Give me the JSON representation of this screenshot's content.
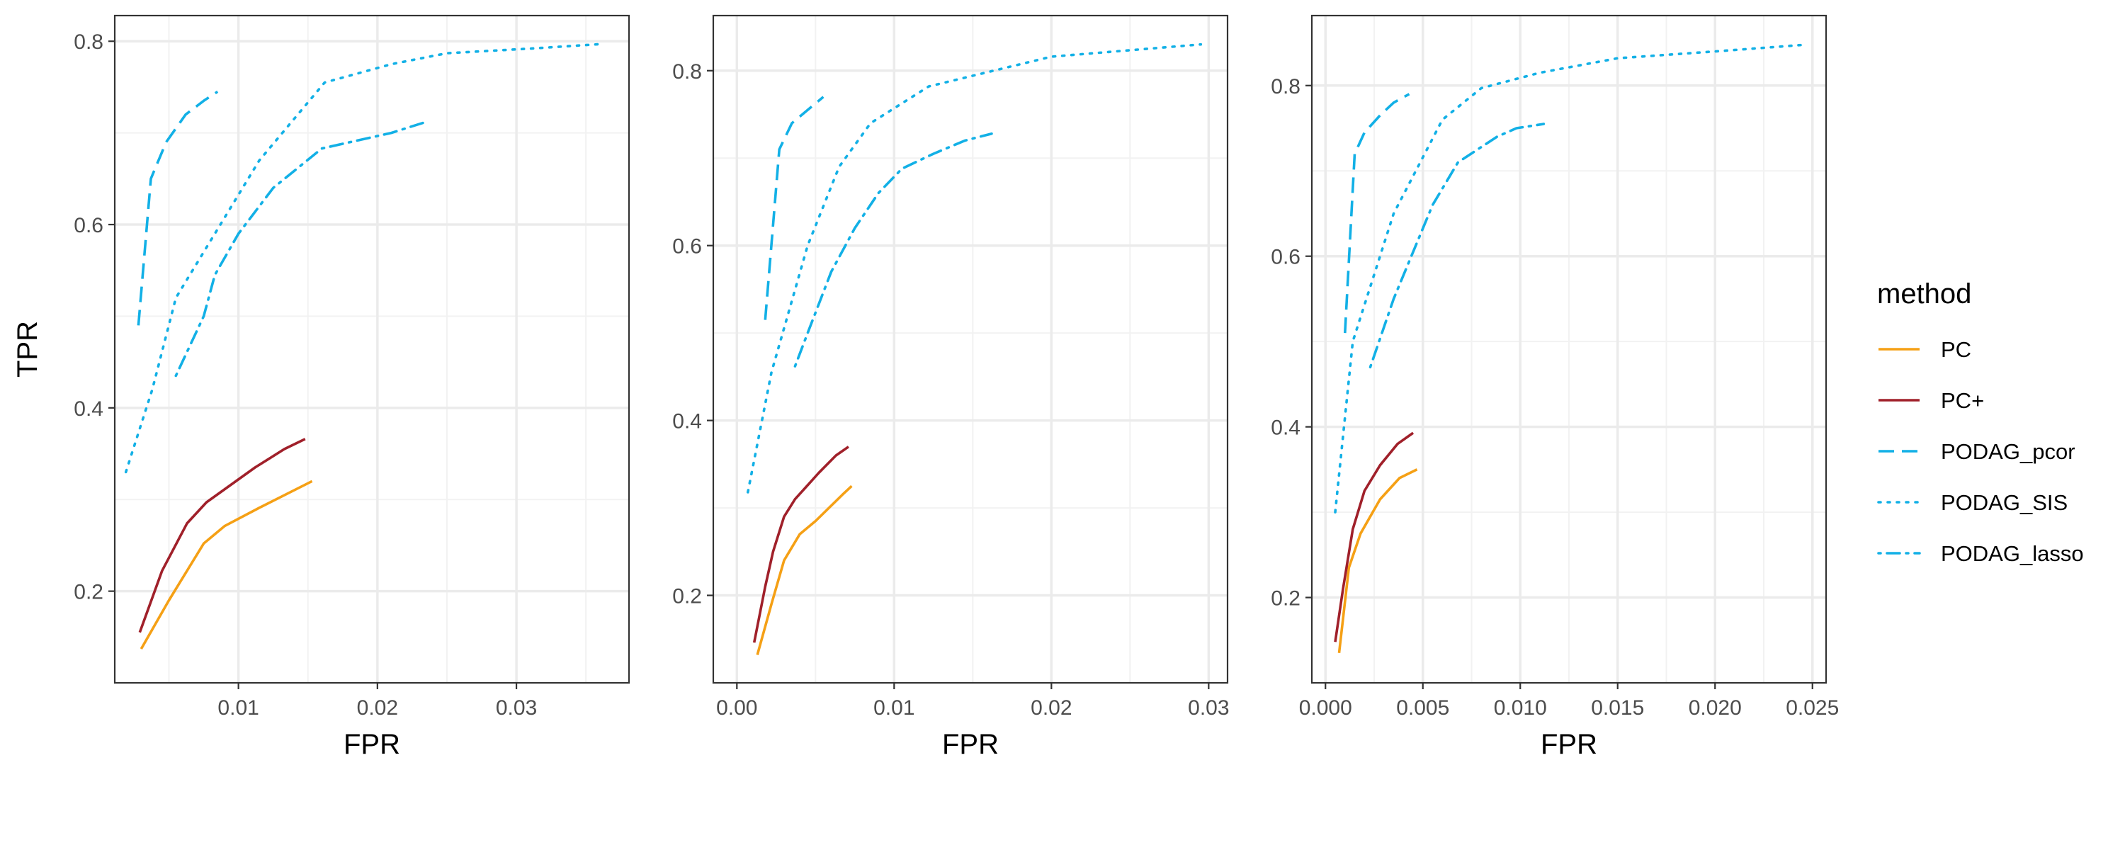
{
  "y_axis_label": "TPR",
  "colors": {
    "PC": "#F5A015",
    "PC+": "#A0202A",
    "PODAG": "#12B0E6"
  },
  "legend": {
    "title": "method",
    "items": [
      {
        "label": "PC",
        "color": "#F5A015",
        "dash": "solid"
      },
      {
        "label": "PC+",
        "color": "#A0202A",
        "dash": "solid"
      },
      {
        "label": "PODAG_pcor",
        "color": "#12B0E6",
        "dash": "dashed"
      },
      {
        "label": "PODAG_SIS",
        "color": "#12B0E6",
        "dash": "dotted"
      },
      {
        "label": "PODAG_lasso",
        "color": "#12B0E6",
        "dash": "dotdash"
      }
    ]
  },
  "chart_data": [
    {
      "type": "line",
      "xlabel": "FPR",
      "ylabel": "TPR",
      "xlim": [
        0.0011,
        0.0381
      ],
      "ylim": [
        0.1,
        0.828
      ],
      "xticks": [
        0.01,
        0.02,
        0.03
      ],
      "xtick_labels": [
        "0.01",
        "0.02",
        "0.03"
      ],
      "yticks": [
        0.2,
        0.4,
        0.6,
        0.8
      ],
      "ytick_labels": [
        "0.2",
        "0.4",
        "0.6",
        "0.8"
      ],
      "grid": true,
      "series": [
        {
          "name": "PC",
          "points": [
            [
              0.003,
              0.137
            ],
            [
              0.005,
              0.19
            ],
            [
              0.0075,
              0.252
            ],
            [
              0.009,
              0.271
            ],
            [
              0.0115,
              0.291
            ],
            [
              0.0153,
              0.32
            ]
          ]
        },
        {
          "name": "PC+",
          "points": [
            [
              0.0029,
              0.155
            ],
            [
              0.0045,
              0.222
            ],
            [
              0.0063,
              0.274
            ],
            [
              0.0077,
              0.297
            ],
            [
              0.0112,
              0.335
            ],
            [
              0.0133,
              0.355
            ],
            [
              0.0148,
              0.366
            ]
          ]
        },
        {
          "name": "PODAG_pcor",
          "points": [
            [
              0.0028,
              0.49
            ],
            [
              0.0037,
              0.65
            ],
            [
              0.0048,
              0.69
            ],
            [
              0.0062,
              0.72
            ],
            [
              0.0075,
              0.735
            ],
            [
              0.0085,
              0.745
            ]
          ]
        },
        {
          "name": "PODAG_SIS",
          "points": [
            [
              0.0019,
              0.33
            ],
            [
              0.0038,
              0.42
            ],
            [
              0.0055,
              0.52
            ],
            [
              0.0075,
              0.57
            ],
            [
              0.0115,
              0.67
            ],
            [
              0.0162,
              0.755
            ],
            [
              0.021,
              0.775
            ],
            [
              0.025,
              0.787
            ],
            [
              0.031,
              0.792
            ],
            [
              0.0362,
              0.797
            ]
          ]
        },
        {
          "name": "PODAG_lasso",
          "points": [
            [
              0.0055,
              0.435
            ],
            [
              0.0075,
              0.5
            ],
            [
              0.0083,
              0.545
            ],
            [
              0.01,
              0.59
            ],
            [
              0.0125,
              0.64
            ],
            [
              0.016,
              0.683
            ],
            [
              0.021,
              0.7
            ],
            [
              0.0235,
              0.712
            ]
          ]
        }
      ]
    },
    {
      "type": "line",
      "xlabel": "FPR",
      "ylabel": "",
      "xlim": [
        -0.0015,
        0.0312
      ],
      "ylim": [
        0.1,
        0.863
      ],
      "xticks": [
        0.0,
        0.01,
        0.02,
        0.03
      ],
      "xtick_labels": [
        "0.00",
        "0.01",
        "0.02",
        "0.03"
      ],
      "yticks": [
        0.2,
        0.4,
        0.6,
        0.8
      ],
      "ytick_labels": [
        "0.2",
        "0.4",
        "0.6",
        "0.8"
      ],
      "grid": true,
      "series": [
        {
          "name": "PC",
          "points": [
            [
              0.0013,
              0.132
            ],
            [
              0.0022,
              0.19
            ],
            [
              0.003,
              0.24
            ],
            [
              0.004,
              0.27
            ],
            [
              0.005,
              0.285
            ],
            [
              0.0067,
              0.315
            ],
            [
              0.0073,
              0.325
            ]
          ]
        },
        {
          "name": "PC+",
          "points": [
            [
              0.0011,
              0.146
            ],
            [
              0.0018,
              0.21
            ],
            [
              0.0023,
              0.25
            ],
            [
              0.003,
              0.29
            ],
            [
              0.0037,
              0.31
            ],
            [
              0.0052,
              0.34
            ],
            [
              0.0063,
              0.36
            ],
            [
              0.0071,
              0.37
            ]
          ]
        },
        {
          "name": "PODAG_pcor",
          "points": [
            [
              0.0018,
              0.515
            ],
            [
              0.0027,
              0.71
            ],
            [
              0.0035,
              0.74
            ],
            [
              0.0045,
              0.755
            ],
            [
              0.0055,
              0.77
            ]
          ]
        },
        {
          "name": "PODAG_SIS",
          "points": [
            [
              0.0007,
              0.318
            ],
            [
              0.0022,
              0.455
            ],
            [
              0.0045,
              0.6
            ],
            [
              0.0065,
              0.69
            ],
            [
              0.0085,
              0.74
            ],
            [
              0.0122,
              0.782
            ],
            [
              0.02,
              0.816
            ],
            [
              0.0295,
              0.83
            ]
          ]
        },
        {
          "name": "PODAG_lasso",
          "points": [
            [
              0.0037,
              0.462
            ],
            [
              0.0045,
              0.5
            ],
            [
              0.006,
              0.57
            ],
            [
              0.0075,
              0.62
            ],
            [
              0.009,
              0.66
            ],
            [
              0.0105,
              0.688
            ],
            [
              0.0125,
              0.705
            ],
            [
              0.0145,
              0.72
            ],
            [
              0.0162,
              0.728
            ]
          ]
        }
      ]
    },
    {
      "type": "line",
      "xlabel": "FPR",
      "ylabel": "",
      "xlim": [
        -0.0007,
        0.0257
      ],
      "ylim": [
        0.1,
        0.882
      ],
      "xticks": [
        0.0,
        0.005,
        0.01,
        0.015,
        0.02,
        0.025
      ],
      "xtick_labels": [
        "0.000",
        "0.005",
        "0.010",
        "0.015",
        "0.020",
        "0.025"
      ],
      "yticks": [
        0.2,
        0.4,
        0.6,
        0.8
      ],
      "ytick_labels": [
        "0.2",
        "0.4",
        "0.6",
        "0.8"
      ],
      "grid": true,
      "series": [
        {
          "name": "PC",
          "points": [
            [
              0.0007,
              0.135
            ],
            [
              0.0012,
              0.235
            ],
            [
              0.0018,
              0.275
            ],
            [
              0.0028,
              0.315
            ],
            [
              0.0038,
              0.34
            ],
            [
              0.0047,
              0.35
            ]
          ]
        },
        {
          "name": "PC+",
          "points": [
            [
              0.0005,
              0.148
            ],
            [
              0.0009,
              0.21
            ],
            [
              0.0014,
              0.28
            ],
            [
              0.002,
              0.325
            ],
            [
              0.0028,
              0.355
            ],
            [
              0.0037,
              0.38
            ],
            [
              0.0045,
              0.393
            ]
          ]
        },
        {
          "name": "PODAG_pcor",
          "points": [
            [
              0.001,
              0.51
            ],
            [
              0.0015,
              0.72
            ],
            [
              0.002,
              0.745
            ],
            [
              0.0028,
              0.765
            ],
            [
              0.0035,
              0.78
            ],
            [
              0.0043,
              0.79
            ]
          ]
        },
        {
          "name": "PODAG_SIS",
          "points": [
            [
              0.0005,
              0.3
            ],
            [
              0.0014,
              0.5
            ],
            [
              0.0035,
              0.65
            ],
            [
              0.006,
              0.76
            ],
            [
              0.008,
              0.797
            ],
            [
              0.011,
              0.815
            ],
            [
              0.015,
              0.832
            ],
            [
              0.02,
              0.84
            ],
            [
              0.0247,
              0.848
            ]
          ]
        },
        {
          "name": "PODAG_lasso",
          "points": [
            [
              0.0023,
              0.47
            ],
            [
              0.0035,
              0.55
            ],
            [
              0.0055,
              0.66
            ],
            [
              0.0068,
              0.71
            ],
            [
              0.0088,
              0.74
            ],
            [
              0.0098,
              0.75
            ],
            [
              0.0112,
              0.755
            ]
          ]
        }
      ]
    }
  ]
}
